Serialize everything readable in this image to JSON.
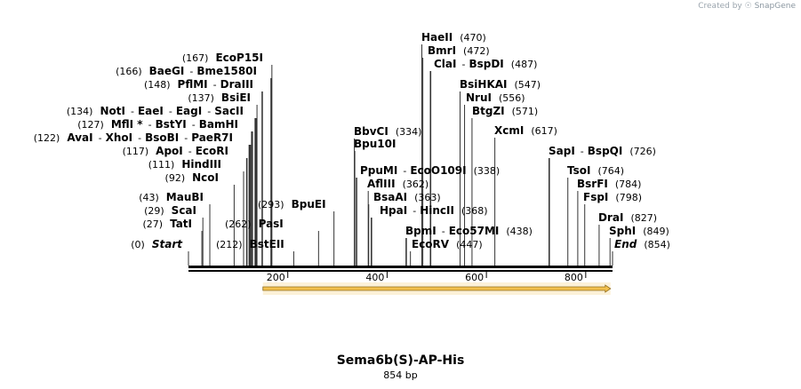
{
  "app": {
    "credit_prefix": "Created by",
    "credit_brand": "SnapGene"
  },
  "plasmid": {
    "name": "Sema6b(S)-AP-His",
    "length_label": "854 bp",
    "length": 854
  },
  "axis": {
    "ticks": [
      200,
      400,
      600,
      800
    ]
  },
  "feature": {
    "name": "orf-arrow",
    "start": 150,
    "end": 850,
    "color": "#f2c14e"
  },
  "label_rows": [
    {
      "parts": [
        {
          "t": "(0)",
          "b": false
        },
        {
          "t": "Start",
          "b": true,
          "i": true
        }
      ],
      "pos": [
        0
      ]
    },
    {
      "parts": [
        {
          "t": "(27)",
          "b": false
        },
        {
          "t": "TatI",
          "b": true
        }
      ],
      "pos": [
        27
      ]
    },
    {
      "parts": [
        {
          "t": "(29)",
          "b": false
        },
        {
          "t": "ScaI",
          "b": true
        }
      ],
      "pos": [
        29
      ]
    },
    {
      "parts": [
        {
          "t": "(43)",
          "b": false
        },
        {
          "t": "MauBI",
          "b": true
        }
      ],
      "pos": [
        43
      ]
    },
    {
      "parts": [
        {
          "t": "(92)",
          "b": false
        },
        {
          "t": "NcoI",
          "b": true
        }
      ],
      "pos": [
        92
      ]
    },
    {
      "parts": [
        {
          "t": "(111)",
          "b": false
        },
        {
          "t": "HindIII",
          "b": true
        }
      ],
      "pos": [
        111
      ]
    },
    {
      "parts": [
        {
          "t": "(117)",
          "b": false
        },
        {
          "t": "ApoI",
          "b": true
        },
        {
          "t": "-",
          "b": false
        },
        {
          "t": "EcoRI",
          "b": true
        }
      ],
      "pos": [
        117,
        118
      ]
    },
    {
      "parts": [
        {
          "t": "(122)",
          "b": false
        },
        {
          "t": "AvaI",
          "b": true
        },
        {
          "t": "-",
          "b": false
        },
        {
          "t": "XhoI",
          "b": true
        },
        {
          "t": "-",
          "b": false
        },
        {
          "t": "BsoBI",
          "b": true
        },
        {
          "t": "-",
          "b": false
        },
        {
          "t": "PaeR7I",
          "b": true
        }
      ],
      "pos": [
        122,
        123,
        124,
        125
      ]
    },
    {
      "parts": [
        {
          "t": "(127)",
          "b": false
        },
        {
          "t": "MflI *",
          "b": true
        },
        {
          "t": "-",
          "b": false
        },
        {
          "t": "BstYI",
          "b": true
        },
        {
          "t": "-",
          "b": false
        },
        {
          "t": "BamHI",
          "b": true
        }
      ],
      "pos": [
        127,
        128,
        129
      ]
    },
    {
      "parts": [
        {
          "t": "(134)",
          "b": false
        },
        {
          "t": "NotI",
          "b": true
        },
        {
          "t": "-",
          "b": false
        },
        {
          "t": "EaeI",
          "b": true
        },
        {
          "t": "-",
          "b": false
        },
        {
          "t": "EagI",
          "b": true
        },
        {
          "t": "-",
          "b": false
        },
        {
          "t": "SacII",
          "b": true
        }
      ],
      "pos": [
        134,
        135,
        136,
        137
      ]
    },
    {
      "parts": [
        {
          "t": "(137)",
          "b": false
        },
        {
          "t": "BsiEI",
          "b": true
        }
      ],
      "pos": [
        138
      ]
    },
    {
      "parts": [
        {
          "t": "(148)",
          "b": false
        },
        {
          "t": "PflMI",
          "b": true
        },
        {
          "t": "-",
          "b": false
        },
        {
          "t": "DraIII",
          "b": true
        }
      ],
      "pos": [
        148,
        149
      ]
    },
    {
      "parts": [
        {
          "t": "(166)",
          "b": false
        },
        {
          "t": "BaeGI",
          "b": true
        },
        {
          "t": "-",
          "b": false
        },
        {
          "t": "Bme1580I",
          "b": true
        }
      ],
      "pos": [
        166,
        167
      ]
    },
    {
      "parts": [
        {
          "t": "(167)",
          "b": false
        },
        {
          "t": "EcoP15I",
          "b": true
        }
      ],
      "pos": [
        168
      ]
    },
    {
      "parts": [
        {
          "t": "(212)",
          "b": false
        },
        {
          "t": "BstEII",
          "b": true
        }
      ],
      "pos": [
        212
      ]
    },
    {
      "parts": [
        {
          "t": "(262)",
          "b": false
        },
        {
          "t": "PasI",
          "b": true
        }
      ],
      "pos": [
        262
      ]
    },
    {
      "parts": [
        {
          "t": "(293)",
          "b": false
        },
        {
          "t": "BpuEI",
          "b": true
        }
      ],
      "pos": [
        293
      ]
    },
    {
      "parts": [
        {
          "t": "BbvCI",
          "b": true
        },
        {
          "t": "(334)",
          "b": false
        }
      ],
      "pos": [
        334
      ]
    },
    {
      "parts": [
        {
          "t": "Bpu10I",
          "b": true
        }
      ],
      "pos": [
        335
      ]
    },
    {
      "parts": [
        {
          "t": "PpuMI",
          "b": true
        },
        {
          "t": "-",
          "b": false
        },
        {
          "t": "EcoO109I",
          "b": true
        },
        {
          "t": "(338)",
          "b": false
        }
      ],
      "pos": [
        338,
        339
      ]
    },
    {
      "parts": [
        {
          "t": "AflIII",
          "b": true
        },
        {
          "t": "(362)",
          "b": false
        }
      ],
      "pos": [
        362
      ]
    },
    {
      "parts": [
        {
          "t": "BsaAI",
          "b": true
        },
        {
          "t": "(363)",
          "b": false
        }
      ],
      "pos": [
        363
      ]
    },
    {
      "parts": [
        {
          "t": "HpaI",
          "b": true
        },
        {
          "t": "-",
          "b": false
        },
        {
          "t": "HincII",
          "b": true
        },
        {
          "t": "(368)",
          "b": false
        }
      ],
      "pos": [
        368,
        369
      ]
    },
    {
      "parts": [
        {
          "t": "BpmI",
          "b": true
        },
        {
          "t": "-",
          "b": false
        },
        {
          "t": "Eco57MI",
          "b": true
        },
        {
          "t": "(438)",
          "b": false
        }
      ],
      "pos": [
        438,
        439
      ]
    },
    {
      "parts": [
        {
          "t": "EcoRV",
          "b": true
        },
        {
          "t": "(447)",
          "b": false
        }
      ],
      "pos": [
        447
      ]
    },
    {
      "parts": [
        {
          "t": "HaeII",
          "b": true
        },
        {
          "t": "(470)",
          "b": false
        }
      ],
      "pos": [
        470
      ]
    },
    {
      "parts": [
        {
          "t": "BmrI",
          "b": true
        },
        {
          "t": "(472)",
          "b": false
        }
      ],
      "pos": [
        472
      ]
    },
    {
      "parts": [
        {
          "t": "ClaI",
          "b": true
        },
        {
          "t": "-",
          "b": false
        },
        {
          "t": "BspDI",
          "b": true
        },
        {
          "t": "(487)",
          "b": false
        }
      ],
      "pos": [
        487,
        488
      ]
    },
    {
      "parts": [
        {
          "t": "BsiHKAI",
          "b": true
        },
        {
          "t": "(547)",
          "b": false
        }
      ],
      "pos": [
        547
      ]
    },
    {
      "parts": [
        {
          "t": "NruI",
          "b": true
        },
        {
          "t": "(556)",
          "b": false
        }
      ],
      "pos": [
        556
      ]
    },
    {
      "parts": [
        {
          "t": "BtgZI",
          "b": true
        },
        {
          "t": "(571)",
          "b": false
        }
      ],
      "pos": [
        571
      ]
    },
    {
      "parts": [
        {
          "t": "XcmI",
          "b": true
        },
        {
          "t": "(617)",
          "b": false
        }
      ],
      "pos": [
        617
      ]
    },
    {
      "parts": [
        {
          "t": "SapI",
          "b": true
        },
        {
          "t": "-",
          "b": false
        },
        {
          "t": "BspQI",
          "b": true
        },
        {
          "t": "(726)",
          "b": false
        }
      ],
      "pos": [
        726,
        727
      ]
    },
    {
      "parts": [
        {
          "t": "TsoI",
          "b": true
        },
        {
          "t": "(764)",
          "b": false
        }
      ],
      "pos": [
        764
      ]
    },
    {
      "parts": [
        {
          "t": "BsrFI",
          "b": true
        },
        {
          "t": "(784)",
          "b": false
        }
      ],
      "pos": [
        784
      ]
    },
    {
      "parts": [
        {
          "t": "FspI",
          "b": true
        },
        {
          "t": "(798)",
          "b": false
        }
      ],
      "pos": [
        798
      ]
    },
    {
      "parts": [
        {
          "t": "DraI",
          "b": true
        },
        {
          "t": "(827)",
          "b": false
        }
      ],
      "pos": [
        827
      ]
    },
    {
      "parts": [
        {
          "t": "SphI",
          "b": true
        },
        {
          "t": "(849)",
          "b": false
        }
      ],
      "pos": [
        849
      ]
    },
    {
      "parts": [
        {
          "t": "End",
          "b": true,
          "i": true
        },
        {
          "t": "(854)",
          "b": false
        }
      ],
      "pos": [
        854
      ]
    }
  ]
}
